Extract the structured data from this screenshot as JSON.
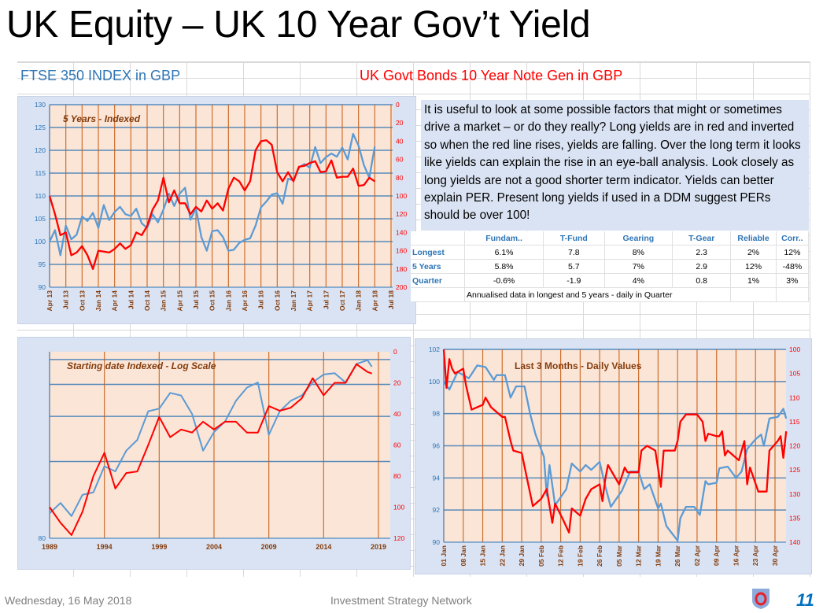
{
  "title": "UK Equity – UK 10 Year Gov’t Yield",
  "headers": {
    "equity": "FTSE 350 INDEX  in  GBP",
    "bond": "UK Govt Bonds 10 Year Note Gen  in  GBP"
  },
  "colors": {
    "equity_series": "#5b9bd5",
    "bond_series": "#ff0000",
    "panel_bg": "#dae3f3",
    "plot_bg": "#fbe5d6",
    "vgrid": "#c55a11",
    "hgrid": "#2e75b6",
    "tick_brown": "#843c0c"
  },
  "commentary": "It is useful to look at some possible factors that might or sometimes drive a market – or do they really? Long yields are in red and inverted so when the red line rises, yields are falling. Over the long term it looks like yields can explain the rise in an eye-ball analysis.  Look closely as long yields are not a good shorter term indicator.   Yields can better explain PER.  Present long yields if used in a DDM suggest PERs should be over 100!",
  "stats_table": {
    "columns": [
      "Fundam..",
      "T-Fund",
      "Gearing",
      "T-Gear",
      "Reliable",
      "Corr.."
    ],
    "rows": [
      {
        "label": "Longest",
        "values": [
          "6.1%",
          "7.8",
          "8%",
          "2.3",
          "2%",
          "12%"
        ]
      },
      {
        "label": "5 Years",
        "values": [
          "5.8%",
          "5.7",
          "7%",
          "2.9",
          "12%",
          "-48%"
        ]
      },
      {
        "label": "Quarter",
        "values": [
          "-0.6%",
          "-1.9",
          "4%",
          "0.8",
          "1%",
          "3%"
        ]
      }
    ],
    "note": "Annualised data in longest and 5 years - daily in Quarter"
  },
  "footer": {
    "date": "Wednesday, 16 May 2018",
    "org": "Investment Strategy Network",
    "page": "11",
    "logo_icon": "shield-ring-logo"
  },
  "chart_data": [
    {
      "type": "line",
      "title": "5 Years - Indexed",
      "x": [
        "Apr 13",
        "May 13",
        "Jun 13",
        "Jul 13",
        "Aug 13",
        "Sep 13",
        "Oct 13",
        "Nov 13",
        "Dec 13",
        "Jan 14",
        "Feb 14",
        "Mar 14",
        "Apr 14",
        "May 14",
        "Jun 14",
        "Jul 14",
        "Aug 14",
        "Sep 14",
        "Oct 14",
        "Nov 14",
        "Dec 14",
        "Jan 15",
        "Feb 15",
        "Mar 15",
        "Apr 15",
        "May 15",
        "Jun 15",
        "Jul 15",
        "Aug 15",
        "Sep 15",
        "Oct 15",
        "Nov 15",
        "Dec 15",
        "Jan 16",
        "Feb 16",
        "Mar 16",
        "Apr 16",
        "May 16",
        "Jun 16",
        "Jul 16",
        "Aug 16",
        "Sep 16",
        "Oct 16",
        "Nov 16",
        "Dec 16",
        "Jan 17",
        "Feb 17",
        "Mar 17",
        "Apr 17",
        "May 17",
        "Jun 17",
        "Jul 17",
        "Aug 17",
        "Sep 17",
        "Oct 17",
        "Nov 17",
        "Dec 17",
        "Jan 18",
        "Feb 18",
        "Mar 18",
        "Apr 18"
      ],
      "x_tick_labels": [
        "Apr 13",
        "Jul 13",
        "Oct 13",
        "Jan 14",
        "Apr 14",
        "Jul 14",
        "Oct 14",
        "Jan 15",
        "Apr 15",
        "Jul 15",
        "Oct 15",
        "Jan 16",
        "Apr 16",
        "Jul 16",
        "Oct 16",
        "Jan 17",
        "Apr 17",
        "Jul 17",
        "Oct 17",
        "Jan 18",
        "Apr 18",
        "Jul 18"
      ],
      "y_left": {
        "ticks": [
          90,
          95,
          100,
          105,
          110,
          115,
          120,
          125,
          130
        ],
        "range": [
          90,
          130
        ]
      },
      "y_right": {
        "ticks": [
          0,
          20,
          40,
          60,
          80,
          100,
          120,
          140,
          160,
          180,
          200
        ],
        "range": [
          0,
          200
        ],
        "inverted": true
      },
      "series": [
        {
          "axis": "left",
          "color": "#5b9bd5",
          "values": [
            100,
            102.5,
            97,
            103.5,
            100.5,
            101.5,
            105.5,
            104.5,
            106.3,
            103,
            108,
            104.7,
            106.5,
            107.6,
            106,
            105.6,
            107.2,
            104,
            103,
            106,
            104.2,
            107,
            110.5,
            107.8,
            110.5,
            111.8,
            104.8,
            107.3,
            101,
            98,
            102.3,
            102.5,
            101,
            98,
            98.2,
            99.7,
            100.4,
            100.7,
            103.5,
            107.5,
            108.8,
            110.3,
            110.6,
            108.3,
            113.8,
            113.4,
            116.2,
            117,
            116.2,
            120.7,
            117.2,
            118.5,
            119.3,
            118.6,
            120.6,
            118,
            123.6,
            121,
            116.7,
            114,
            120.8
          ]
        },
        {
          "axis": "right",
          "color": "#ff0000",
          "values": [
            100,
            120,
            143,
            140,
            165,
            162,
            155,
            165,
            180,
            160,
            161,
            162,
            158,
            152,
            158,
            154,
            140,
            143,
            133,
            115,
            105,
            80,
            107,
            94,
            108,
            108,
            120,
            112,
            117,
            105,
            114,
            108,
            116,
            92,
            80,
            84,
            94,
            84,
            50,
            40,
            39,
            44,
            74,
            84,
            74,
            84,
            68,
            67,
            64,
            62,
            74,
            73,
            61,
            80,
            79,
            79,
            70,
            89,
            88,
            80,
            84
          ]
        }
      ]
    },
    {
      "type": "line",
      "title": "Starting date Indexed - Log Scale",
      "x_tick_labels": [
        "1989",
        "1994",
        "1999",
        "2004",
        "2009",
        "2014",
        "2019"
      ],
      "y_left": {
        "ticks": [
          80
        ],
        "scale": "log"
      },
      "y_right": {
        "ticks": [
          0,
          20,
          40,
          60,
          80,
          100,
          120
        ],
        "range": [
          0,
          120
        ],
        "inverted": true
      },
      "series": [
        {
          "axis": "left",
          "color": "#5b9bd5",
          "x": [
            1989,
            1990,
            1991,
            1992,
            1993,
            1994,
            1995,
            1996,
            1997,
            1998,
            1999,
            2000,
            2001,
            2002,
            2003,
            2004,
            2005,
            2006,
            2007,
            2008,
            2009,
            2010,
            2011,
            2012,
            2013,
            2014,
            2015,
            2016,
            2017,
            2018,
            2018.4
          ],
          "values": [
            112,
            129,
            108,
            144,
            149,
            212,
            198,
            262,
            303,
            447,
            463,
            573,
            553,
            431,
            262,
            337,
            388,
            515,
            615,
            660,
            325,
            447,
            515,
            553,
            660,
            735,
            748,
            660,
            848,
            892,
            816
          ]
        },
        {
          "axis": "right",
          "color": "#ff0000",
          "x": [
            1989,
            1990,
            1991,
            1992,
            1993,
            1994,
            1995,
            1996,
            1997,
            1998,
            1999,
            2000,
            2001,
            2002,
            2003,
            2004,
            2005,
            2006,
            2007,
            2008,
            2009,
            2010,
            2011,
            2012,
            2013,
            2014,
            2015,
            2016,
            2017,
            2018,
            2018.4
          ],
          "values": [
            100,
            110,
            118,
            103,
            80,
            65,
            88,
            78,
            77,
            60,
            42,
            55,
            50,
            52,
            45,
            50,
            45,
            45,
            52,
            52,
            35,
            38,
            36,
            30,
            17,
            28,
            20,
            20,
            8,
            13,
            14
          ]
        }
      ]
    },
    {
      "type": "line",
      "title": "Last 3 Months - Daily Values",
      "x_tick_labels": [
        "01 Jan",
        "08 Jan",
        "15 Jan",
        "22 Jan",
        "29 Jan",
        "05 Feb",
        "12 Feb",
        "19 Feb",
        "26 Feb",
        "05 Mar",
        "12 Mar",
        "19 Mar",
        "26 Mar",
        "02 Apr",
        "09 Apr",
        "16 Apr",
        "23 Apr",
        "30 Apr"
      ],
      "y_left": {
        "ticks": [
          90,
          92,
          94,
          96,
          98,
          100,
          102
        ],
        "range": [
          90,
          102
        ]
      },
      "y_right": {
        "ticks": [
          100,
          105,
          110,
          115,
          120,
          125,
          130,
          135,
          140
        ],
        "range": [
          100,
          140
        ],
        "inverted": true
      },
      "series": [
        {
          "axis": "left",
          "color": "#5b9bd5",
          "x": [
            "01 Jan",
            "03 Jan",
            "06 Jan",
            "10 Jan",
            "13 Jan",
            "16 Jan",
            "19 Jan",
            "20 Jan",
            "23 Jan",
            "25 Jan",
            "27 Jan",
            "30 Jan",
            "01 Feb",
            "03 Feb",
            "06 Feb",
            "07 Feb",
            "08 Feb",
            "10 Feb",
            "14 Feb",
            "16 Feb",
            "19 Feb",
            "21 Feb",
            "23 Feb",
            "26 Feb",
            "28 Feb",
            "02 Mar",
            "06 Mar",
            "09 Mar",
            "12 Mar",
            "14 Mar",
            "16 Mar",
            "19 Mar",
            "20 Mar",
            "22 Mar",
            "26 Mar",
            "27 Mar",
            "29 Mar",
            "01 Apr",
            "03 Apr",
            "05 Apr",
            "06 Apr",
            "09 Apr",
            "10 Apr",
            "13 Apr",
            "16 Apr",
            "18 Apr",
            "20 Apr",
            "23 Apr",
            "25 Apr",
            "26 Apr",
            "28 Apr",
            "01 May",
            "03 May",
            "04 May"
          ],
          "values": [
            100,
            99.5,
            100.6,
            100.2,
            101,
            100.9,
            100.1,
            100.4,
            100.4,
            99,
            99.7,
            99.7,
            98,
            96.7,
            95.3,
            92.9,
            94.8,
            92.3,
            93.3,
            94.9,
            94.4,
            94.8,
            94.5,
            95,
            93.5,
            92.2,
            93.2,
            94.4,
            94.4,
            93.3,
            93.6,
            92.1,
            92.4,
            91,
            90.1,
            91.5,
            92.2,
            92.2,
            91.7,
            93.8,
            93.6,
            93.7,
            94.6,
            94.7,
            94,
            94.4,
            95.8,
            96.4,
            96.7,
            96,
            97.7,
            97.8,
            98.3,
            97.7
          ]
        },
        {
          "axis": "right",
          "color": "#ff0000",
          "x": [
            "01 Jan",
            "02 Jan",
            "03 Jan",
            "04 Jan",
            "05 Jan",
            "08 Jan",
            "09 Jan",
            "11 Jan",
            "15 Jan",
            "16 Jan",
            "18 Jan",
            "22 Jan",
            "23 Jan",
            "25 Jan",
            "26 Jan",
            "29 Jan",
            "31 Jan",
            "02 Feb",
            "05 Feb",
            "07 Feb",
            "09 Feb",
            "10 Feb",
            "13 Feb",
            "15 Feb",
            "16 Feb",
            "19 Feb",
            "21 Feb",
            "23 Feb",
            "26 Feb",
            "27 Feb",
            "28 Feb",
            "01 Mar",
            "05 Mar",
            "07 Mar",
            "08 Mar",
            "12 Mar",
            "13 Mar",
            "15 Mar",
            "18 Mar",
            "20 Mar",
            "21 Mar",
            "25 Mar",
            "26 Mar",
            "27 Mar",
            "29 Mar",
            "02 Apr",
            "04 Apr",
            "05 Apr",
            "06 Apr",
            "09 Apr",
            "10 Apr",
            "11 Apr",
            "12 Apr",
            "13 Apr",
            "17 Apr",
            "19 Apr",
            "20 Apr",
            "21 Apr",
            "24 Apr",
            "27 Apr",
            "28 Apr",
            "01 May",
            "02 May",
            "03 May",
            "04 May"
          ],
          "values": [
            100,
            108,
            102,
            104,
            105,
            104,
            107.5,
            112.5,
            111.5,
            110,
            112,
            114,
            114,
            119,
            121,
            121.5,
            127,
            132.5,
            131,
            129,
            136,
            132,
            135.5,
            138,
            133,
            134.5,
            131,
            129,
            128,
            131.5,
            127,
            124,
            128,
            124.5,
            125.5,
            125.5,
            121,
            120,
            121,
            128.5,
            121,
            121,
            119,
            115,
            113.5,
            113.5,
            115,
            119,
            117.5,
            118,
            118,
            117,
            122,
            121,
            123,
            119,
            128,
            124.5,
            129.5,
            129.5,
            121,
            119,
            118,
            122.5,
            117
          ]
        }
      ]
    }
  ]
}
